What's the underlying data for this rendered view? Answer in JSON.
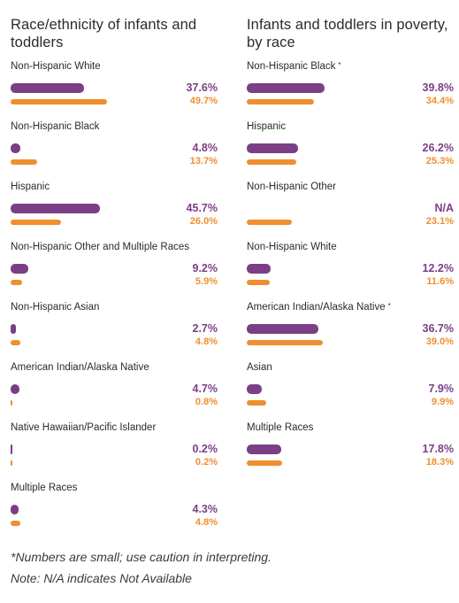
{
  "chart_data": [
    {
      "type": "bar",
      "title": "Race/ethnicity of infants and toddlers",
      "categories": [
        "Non-Hispanic White",
        "Non-Hispanic Black",
        "Hispanic",
        "Non-Hispanic Other and Multiple Races",
        "Non-Hispanic Asian",
        "American Indian/Alaska Native",
        "Native Hawaiian/Pacific Islander",
        "Multiple Races"
      ],
      "series": [
        {
          "values": [
            37.6,
            4.8,
            45.7,
            9.2,
            2.7,
            4.7,
            0.2,
            4.3
          ],
          "labels": [
            "37.6%",
            "4.8%",
            "45.7%",
            "9.2%",
            "2.7%",
            "4.7%",
            "0.2%",
            "4.3%"
          ],
          "color": "#7b3f86"
        },
        {
          "values": [
            49.7,
            13.7,
            26.0,
            5.9,
            4.8,
            0.8,
            0.2,
            4.8
          ],
          "labels": [
            "49.7%",
            "13.7%",
            "26.0%",
            "5.9%",
            "4.8%",
            "0.8%",
            "0.2%",
            "4.8%"
          ],
          "color": "#ef8f2f"
        }
      ],
      "flags": [
        false,
        false,
        false,
        false,
        false,
        false,
        false,
        false
      ],
      "xlim": [
        0,
        50
      ]
    },
    {
      "type": "bar",
      "title": "Infants and toddlers in poverty, by race",
      "categories": [
        "Non-Hispanic Black",
        "Hispanic",
        "Non-Hispanic Other",
        "Non-Hispanic White",
        "American Indian/Alaska Native",
        "Asian",
        "Multiple Races"
      ],
      "series": [
        {
          "values": [
            39.8,
            26.2,
            null,
            12.2,
            36.7,
            7.9,
            17.8
          ],
          "labels": [
            "39.8%",
            "26.2%",
            "N/A",
            "12.2%",
            "36.7%",
            "7.9%",
            "17.8%"
          ],
          "color": "#7b3f86"
        },
        {
          "values": [
            34.4,
            25.3,
            23.1,
            11.6,
            39.0,
            9.9,
            18.3
          ],
          "labels": [
            "34.4%",
            "25.3%",
            "23.1%",
            "11.6%",
            "39.0%",
            "9.9%",
            "18.3%"
          ],
          "color": "#ef8f2f"
        }
      ],
      "flags": [
        true,
        false,
        false,
        false,
        true,
        false,
        false
      ],
      "xlim": [
        0,
        50
      ]
    }
  ],
  "footnotes": {
    "asterisk_note": "*Numbers are small; use caution in interpreting.",
    "na_note": "Note: N/A indicates Not Available"
  },
  "flag_symbol": "*"
}
